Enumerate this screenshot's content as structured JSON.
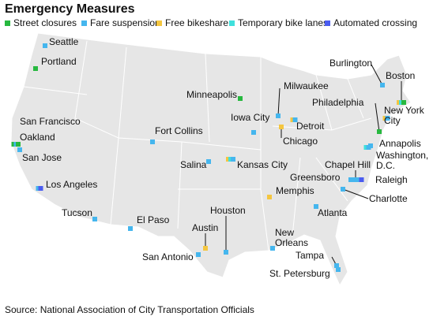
{
  "header": {
    "title": "Emergency Measures"
  },
  "legend": [
    {
      "label": "Street closures",
      "color": "#27b83f"
    },
    {
      "label": "Fare suspension",
      "color": "#45b6ee"
    },
    {
      "label": "Free bikeshare",
      "color": "#f4c640"
    },
    {
      "label": "Temporary bike lanes",
      "color": "#3fe0dc"
    },
    {
      "label": "Automated crossing",
      "color": "#4a5cf0"
    }
  ],
  "cities": [
    {
      "label": [
        "Seattle"
      ],
      "measures": [
        1
      ]
    },
    {
      "label": [
        "Portland"
      ],
      "measures": [
        0
      ]
    },
    {
      "label": [
        "San Francisco"
      ],
      "measures": [
        0,
        1
      ]
    },
    {
      "label": [
        "Oakland"
      ],
      "measures": [
        0
      ]
    },
    {
      "label": [
        "San Jose"
      ],
      "measures": [
        1
      ]
    },
    {
      "label": [
        "Los Angeles"
      ],
      "measures": [
        1,
        4
      ]
    },
    {
      "label": [
        "Tucson"
      ],
      "measures": [
        1
      ]
    },
    {
      "label": [
        "El Paso"
      ],
      "measures": [
        1
      ]
    },
    {
      "label": [
        "Fort Collins"
      ],
      "measures": [
        1
      ]
    },
    {
      "label": [
        "Salina"
      ],
      "measures": [
        1
      ]
    },
    {
      "label": [
        "Kansas City"
      ],
      "measures": [
        2,
        3,
        1
      ]
    },
    {
      "label": [
        "Minneapolis"
      ],
      "measures": [
        0
      ]
    },
    {
      "label": [
        "Milwaukee"
      ],
      "measures": [
        1
      ]
    },
    {
      "label": [
        "Iowa City"
      ],
      "measures": [
        1
      ]
    },
    {
      "label": [
        "Chicago"
      ],
      "measures": [
        2
      ]
    },
    {
      "label": [
        "Detroit"
      ],
      "measures": [
        2,
        1
      ]
    },
    {
      "label": [
        "Houston"
      ],
      "measures": [
        1
      ]
    },
    {
      "label": [
        "Austin"
      ],
      "measures": [
        2
      ]
    },
    {
      "label": [
        "San Antonio"
      ],
      "measures": [
        1
      ]
    },
    {
      "label": [
        "New",
        "Orleans"
      ],
      "measures": [
        1
      ]
    },
    {
      "label": [
        "Memphis"
      ],
      "measures": [
        2
      ]
    },
    {
      "label": [
        "Atlanta"
      ],
      "measures": [
        1
      ]
    },
    {
      "label": [
        "Tampa"
      ],
      "measures": [
        1
      ]
    },
    {
      "label": [
        "St. Petersburg"
      ],
      "measures": [
        1
      ]
    },
    {
      "label": [
        "Charlotte"
      ],
      "measures": [
        1
      ]
    },
    {
      "label": [
        "Raleigh"
      ],
      "measures": [
        1,
        4
      ]
    },
    {
      "label": [
        "Greensboro"
      ],
      "measures": [
        1
      ]
    },
    {
      "label": [
        "Chapel Hill"
      ],
      "measures": [
        1
      ]
    },
    {
      "label": [
        "Washington,",
        "D.C."
      ],
      "measures": [
        3,
        1
      ]
    },
    {
      "label": [
        "Annapolis"
      ],
      "measures": [
        1
      ]
    },
    {
      "label": [
        "Philadelphia"
      ],
      "measures": [
        0
      ]
    },
    {
      "label": [
        "New York",
        "City"
      ],
      "measures": [
        2,
        1
      ]
    },
    {
      "label": [
        "Boston"
      ],
      "measures": [
        2,
        3,
        0
      ]
    },
    {
      "label": [
        "Burlington"
      ],
      "measures": [
        1
      ]
    }
  ],
  "source": "Source: National Association of City Transportation Officials"
}
